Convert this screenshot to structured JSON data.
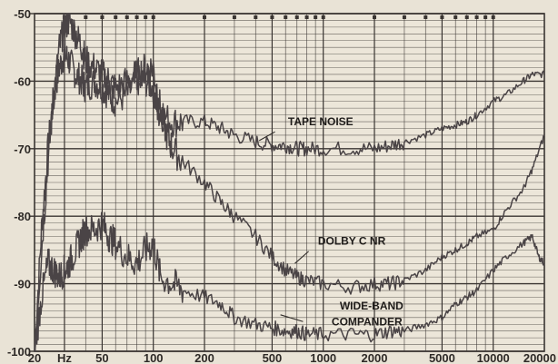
{
  "chart_data": {
    "type": "line",
    "x_scale": "log",
    "xlim": [
      20,
      20000
    ],
    "ylim": [
      -100,
      -50
    ],
    "x_ticks": [
      {
        "value": 20,
        "label": "20"
      },
      {
        "value": 30,
        "label": "Hz"
      },
      {
        "value": 50,
        "label": "50"
      },
      {
        "value": 100,
        "label": "100"
      },
      {
        "value": 200,
        "label": "200"
      },
      {
        "value": 500,
        "label": "500"
      },
      {
        "value": 1000,
        "label": "1000"
      },
      {
        "value": 2000,
        "label": "2000"
      },
      {
        "value": 5000,
        "label": "5000"
      },
      {
        "value": 10000,
        "label": "10000"
      },
      {
        "value": 20000,
        "label": "20000"
      }
    ],
    "y_ticks": [
      {
        "value": -50,
        "label": "-50"
      },
      {
        "value": -60,
        "label": "-60"
      },
      {
        "value": -70,
        "label": "-70"
      },
      {
        "value": -80,
        "label": "-80"
      },
      {
        "value": -90,
        "label": "-90"
      },
      {
        "value": -100,
        "label": "-100"
      }
    ],
    "grid": true,
    "colors": {
      "background": "#e9e3d6",
      "grid": "#3a3532",
      "line": "#4a4446",
      "text": "#2e2a27"
    },
    "annotations": [
      {
        "text": "TAPE NOISE",
        "series": 0
      },
      {
        "text": "DOLBY C NR",
        "series": 1
      },
      {
        "text": "WIDE-BAND",
        "series": 2
      },
      {
        "text": "COMPANDER",
        "series": 2
      }
    ],
    "series": [
      {
        "name": "TAPE NOISE",
        "x": [
          20,
          22,
          24,
          26,
          28,
          30,
          32,
          35,
          38,
          40,
          45,
          50,
          55,
          60,
          70,
          80,
          90,
          100,
          105,
          110,
          130,
          150,
          200,
          250,
          300,
          400,
          500,
          600,
          700,
          800,
          1000,
          1500,
          2000,
          2500,
          3000,
          4000,
          5000,
          6000,
          7000,
          8000,
          10000,
          12000,
          15000,
          17000,
          20000
        ],
        "y": [
          -100,
          -82,
          -70,
          -62,
          -58,
          -56,
          -57,
          -59,
          -60,
          -61,
          -60,
          -61,
          -62,
          -63,
          -62,
          -60,
          -60,
          -61,
          -64,
          -65,
          -66,
          -66,
          -66,
          -67,
          -68,
          -69,
          -69.5,
          -69.5,
          -70,
          -70,
          -70,
          -70,
          -70,
          -69.5,
          -69,
          -68,
          -67,
          -66.5,
          -66,
          -65,
          -63,
          -62,
          -60,
          -59,
          -59
        ]
      },
      {
        "name": "DOLBY C NR",
        "x": [
          20,
          22,
          24,
          26,
          28,
          30,
          32,
          35,
          38,
          40,
          45,
          50,
          55,
          60,
          70,
          80,
          90,
          100,
          110,
          120,
          130,
          150,
          200,
          250,
          300,
          400,
          500,
          600,
          700,
          800,
          1000,
          1500,
          2000,
          2500,
          3000,
          4000,
          5000,
          6000,
          7000,
          8000,
          10000,
          12000,
          15000,
          17000,
          20000
        ],
        "y": [
          -100,
          -85,
          -72,
          -62,
          -55,
          -52,
          -51,
          -53,
          -55,
          -57,
          -58,
          -59,
          -60,
          -61,
          -60,
          -59,
          -58,
          -58,
          -64,
          -68,
          -70,
          -72,
          -75,
          -78,
          -80,
          -83,
          -86,
          -88,
          -89,
          -89.5,
          -90,
          -90.5,
          -90,
          -90,
          -89.5,
          -88,
          -86,
          -85,
          -84,
          -83,
          -82,
          -79,
          -76,
          -73,
          -68
        ]
      },
      {
        "name": "WIDE-BAND COMPANDER",
        "x": [
          20,
          22,
          24,
          26,
          28,
          30,
          32,
          35,
          38,
          40,
          45,
          50,
          55,
          60,
          70,
          80,
          90,
          100,
          110,
          130,
          150,
          200,
          250,
          300,
          400,
          500,
          600,
          700,
          800,
          1000,
          1500,
          2000,
          2500,
          3000,
          4000,
          5000,
          6000,
          7000,
          8000,
          10000,
          12000,
          15000,
          17000,
          18500,
          20000
        ],
        "y": [
          -100,
          -92,
          -87,
          -88,
          -89,
          -88,
          -87,
          -85,
          -83,
          -82,
          -82,
          -81,
          -83,
          -84,
          -86,
          -87,
          -85,
          -84,
          -89,
          -90,
          -91,
          -92,
          -93,
          -95,
          -96,
          -96.5,
          -97,
          -97,
          -97.5,
          -97.5,
          -97.5,
          -97.5,
          -97,
          -97,
          -96,
          -95,
          -93,
          -92,
          -91,
          -88,
          -86,
          -84,
          -83,
          -86,
          -87
        ]
      }
    ]
  }
}
